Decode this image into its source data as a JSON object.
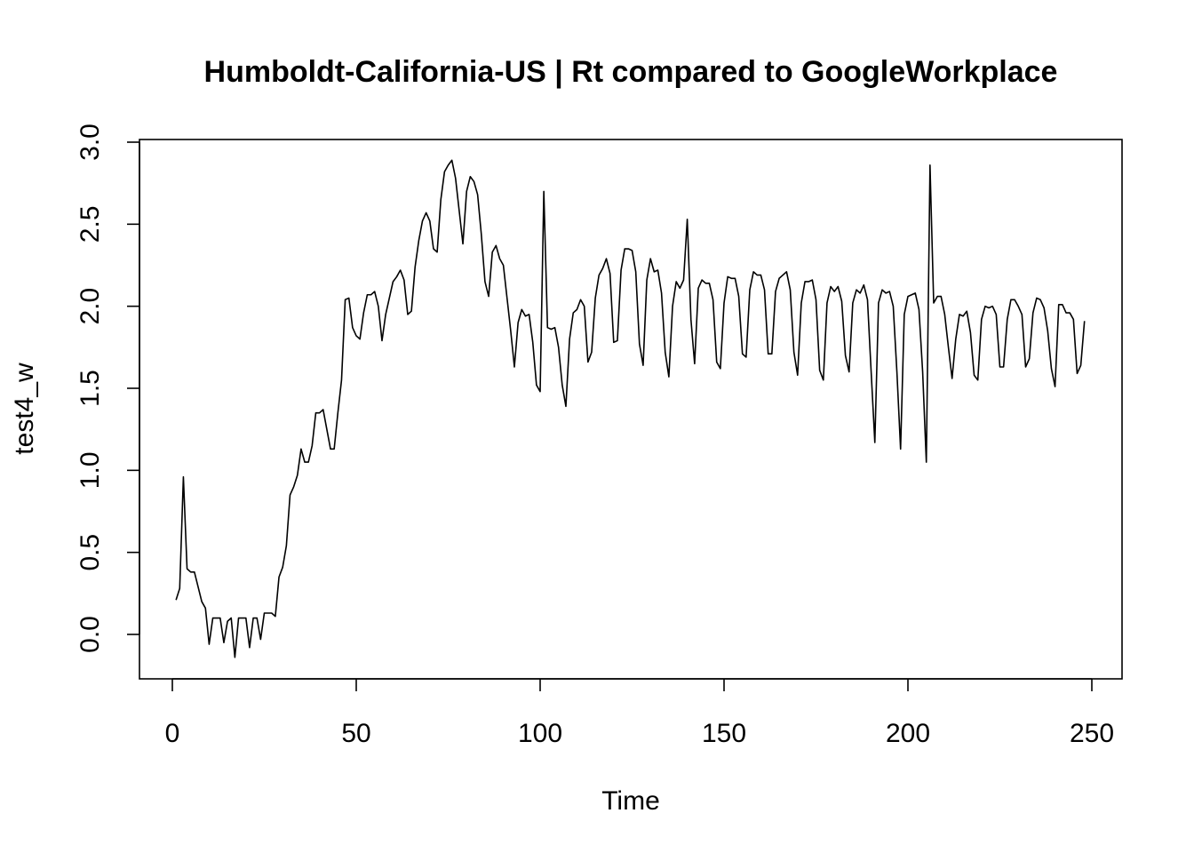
{
  "chart_data": {
    "type": "line",
    "title": "Humboldt-California-US | Rt compared to GoogleWorkplace",
    "xlabel": "Time",
    "ylabel": "test4_w",
    "xlim": [
      1,
      248
    ],
    "ylim": [
      -0.13,
      2.9
    ],
    "x_ticks": [
      0,
      50,
      100,
      150,
      200,
      250
    ],
    "y_ticks": [
      0.0,
      0.5,
      1.0,
      1.5,
      2.0,
      2.5,
      3.0
    ],
    "x_tick_labels": [
      "0",
      "50",
      "100",
      "150",
      "200",
      "250"
    ],
    "y_tick_labels": [
      "0.0",
      "0.5",
      "1.0",
      "1.5",
      "2.0",
      "2.5",
      "3.0"
    ],
    "grid": false,
    "line_color": "#000000",
    "series": [
      {
        "values": [
          0.21,
          0.28,
          0.96,
          0.4,
          0.38,
          0.38,
          0.29,
          0.2,
          0.16,
          -0.06,
          0.1,
          0.1,
          0.1,
          -0.05,
          0.08,
          0.1,
          -0.14,
          0.1,
          0.1,
          0.1,
          -0.08,
          0.1,
          0.1,
          -0.03,
          0.13,
          0.13,
          0.13,
          0.11,
          0.35,
          0.41,
          0.54,
          0.85,
          0.9,
          0.97,
          1.13,
          1.05,
          1.05,
          1.15,
          1.35,
          1.35,
          1.37,
          1.25,
          1.13,
          1.13,
          1.35,
          1.55,
          2.04,
          2.05,
          1.87,
          1.82,
          1.8,
          1.96,
          2.07,
          2.07,
          2.09,
          2.0,
          1.79,
          1.95,
          2.05,
          2.15,
          2.18,
          2.22,
          2.16,
          1.95,
          1.97,
          2.24,
          2.4,
          2.52,
          2.57,
          2.52,
          2.35,
          2.33,
          2.65,
          2.82,
          2.86,
          2.89,
          2.78,
          2.58,
          2.38,
          2.7,
          2.79,
          2.76,
          2.68,
          2.44,
          2.15,
          2.06,
          2.33,
          2.37,
          2.29,
          2.25,
          2.05,
          1.85,
          1.63,
          1.9,
          1.98,
          1.94,
          1.95,
          1.78,
          1.52,
          1.48,
          2.7,
          1.87,
          1.86,
          1.87,
          1.75,
          1.52,
          1.39,
          1.8,
          1.96,
          1.98,
          2.04,
          2.0,
          1.66,
          1.72,
          2.05,
          2.19,
          2.23,
          2.29,
          2.2,
          1.78,
          1.79,
          2.22,
          2.35,
          2.35,
          2.34,
          2.21,
          1.77,
          1.64,
          2.16,
          2.29,
          2.21,
          2.22,
          2.08,
          1.72,
          1.57,
          2.0,
          2.15,
          2.11,
          2.16,
          2.53,
          1.92,
          1.65,
          2.11,
          2.16,
          2.14,
          2.14,
          2.04,
          1.66,
          1.62,
          2.02,
          2.18,
          2.17,
          2.17,
          2.06,
          1.71,
          1.69,
          2.1,
          2.21,
          2.19,
          2.19,
          2.1,
          1.71,
          1.71,
          2.09,
          2.17,
          2.19,
          2.21,
          2.1,
          1.72,
          1.58,
          2.02,
          2.15,
          2.15,
          2.16,
          2.04,
          1.61,
          1.55,
          2.02,
          2.12,
          2.09,
          2.12,
          2.03,
          1.7,
          1.6,
          2.02,
          2.1,
          2.08,
          2.13,
          2.04,
          1.6,
          1.17,
          2.02,
          2.1,
          2.08,
          2.09,
          2.0,
          1.6,
          1.13,
          1.95,
          2.06,
          2.07,
          2.08,
          1.98,
          1.6,
          1.05,
          2.86,
          2.02,
          2.06,
          2.06,
          1.95,
          1.75,
          1.56,
          1.8,
          1.95,
          1.94,
          1.97,
          1.84,
          1.58,
          1.55,
          1.92,
          2.0,
          1.99,
          2.0,
          1.95,
          1.63,
          1.63,
          1.92,
          2.04,
          2.04,
          2.0,
          1.95,
          1.63,
          1.68,
          1.96,
          2.05,
          2.04,
          1.99,
          1.85,
          1.62,
          1.51,
          2.01,
          2.01,
          1.96,
          1.96,
          1.92,
          1.59,
          1.64,
          1.91
        ]
      }
    ]
  }
}
